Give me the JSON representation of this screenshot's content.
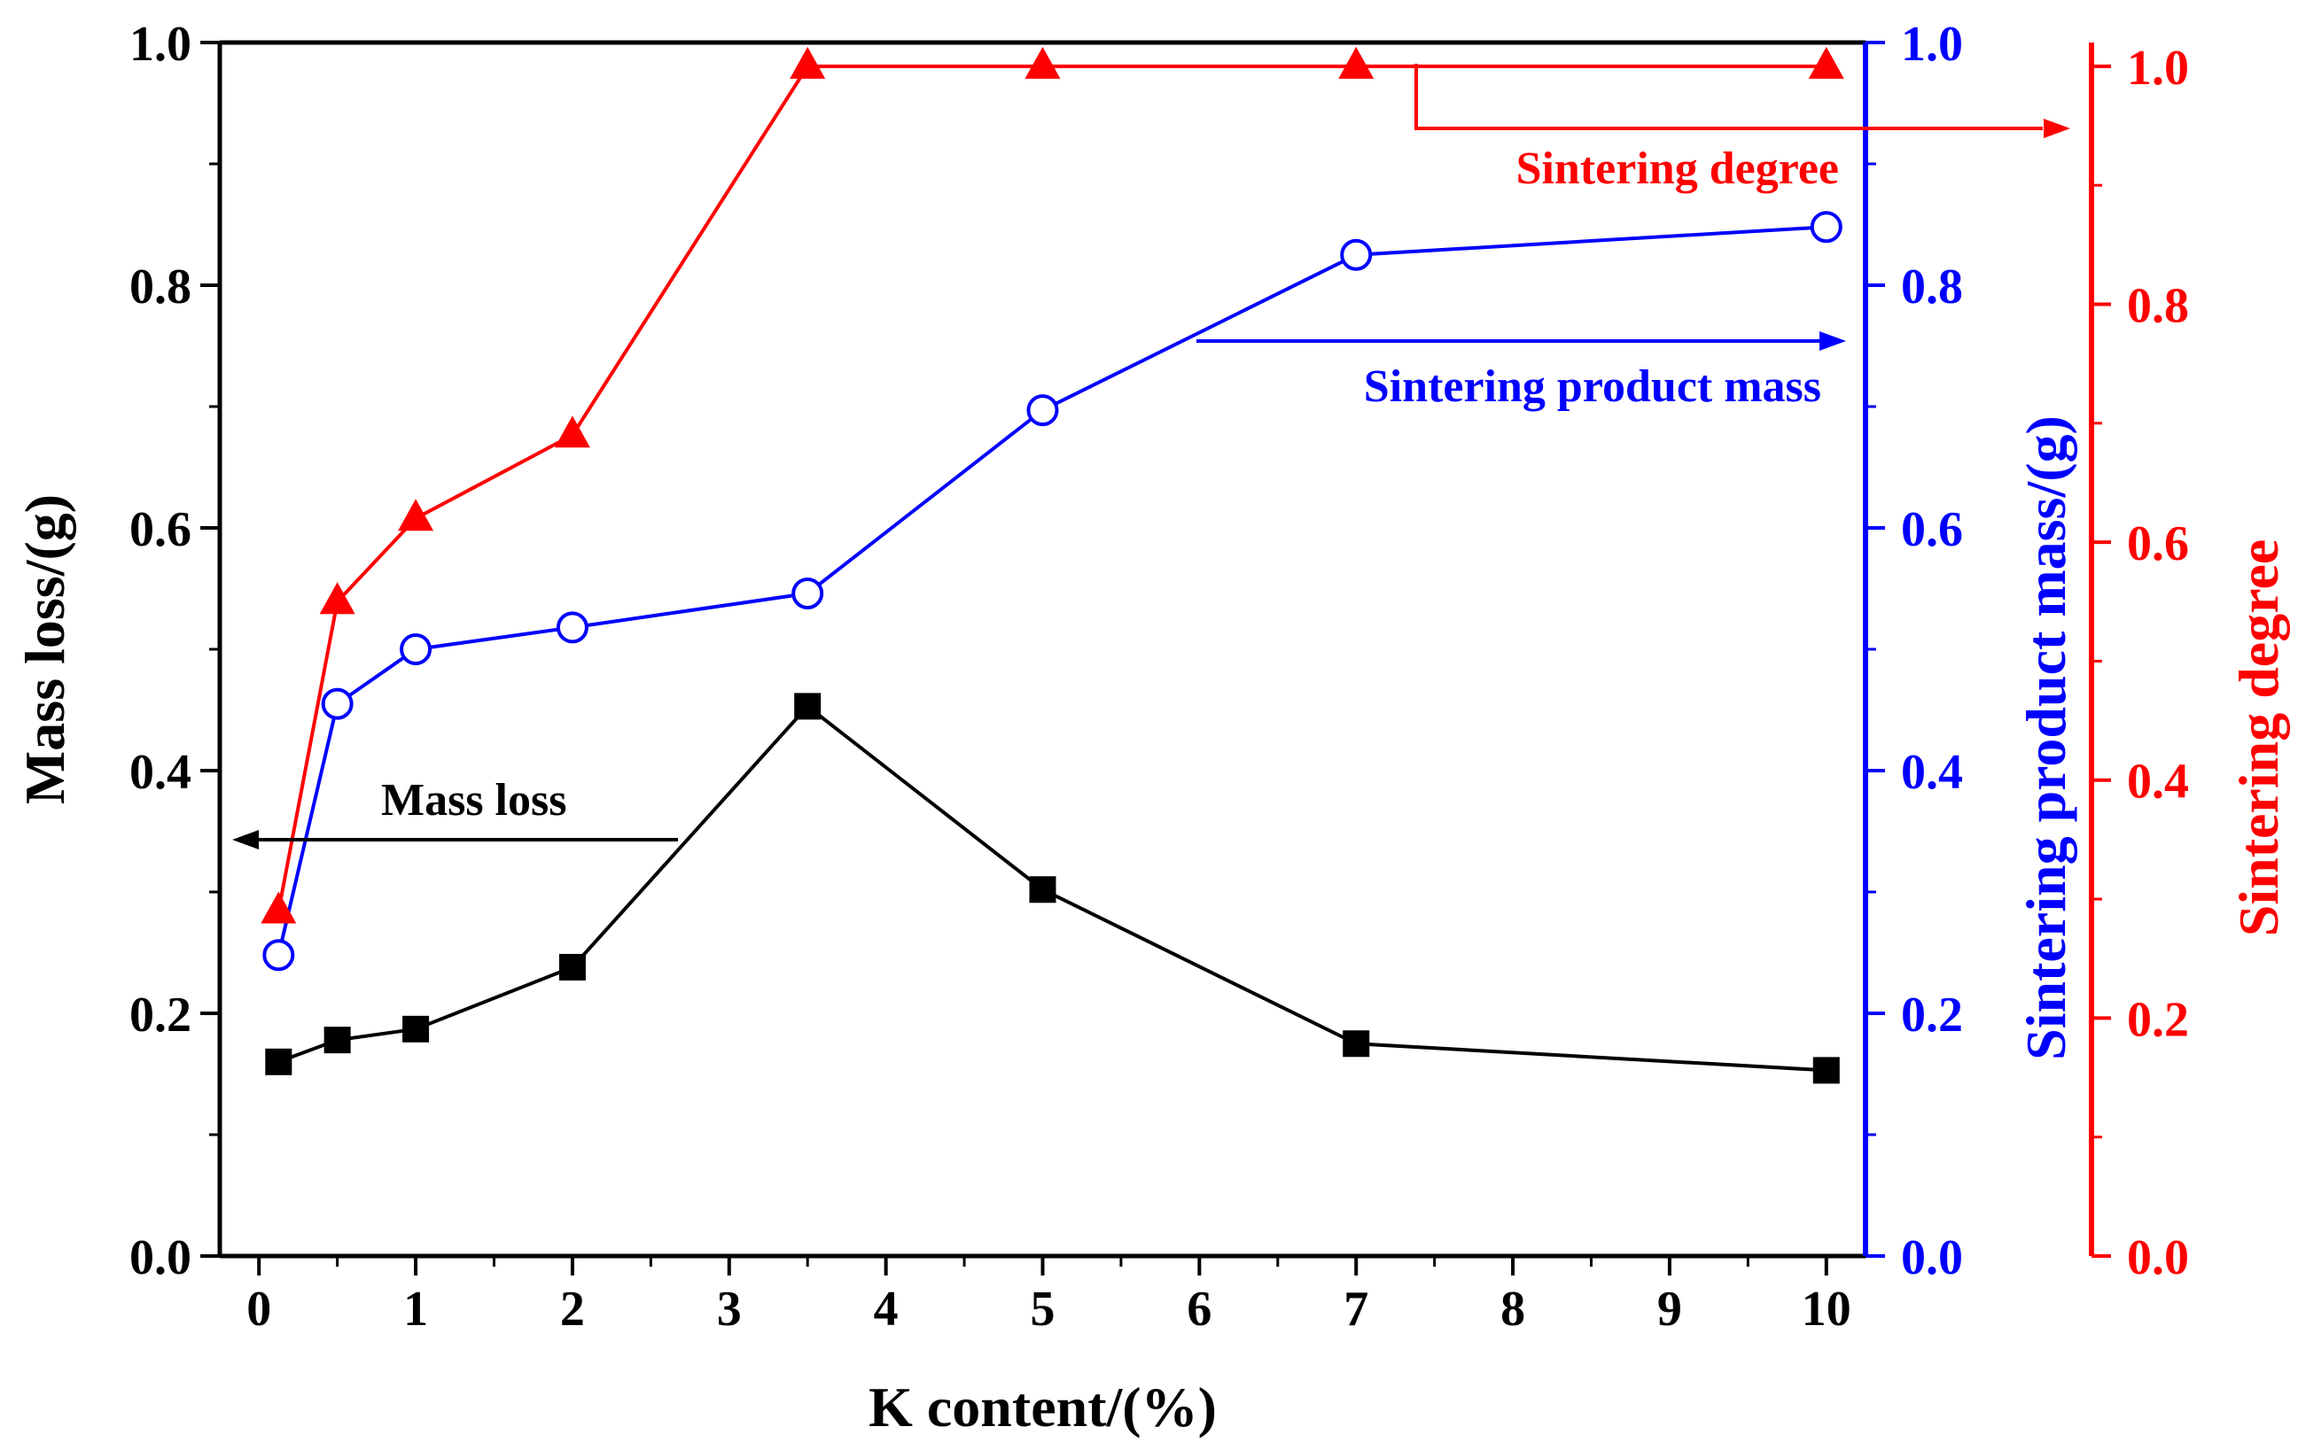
{
  "chart_data": {
    "type": "line",
    "title": "",
    "xlabel": "K content/(%)",
    "x_ticks": [
      "0",
      "1",
      "2",
      "3",
      "4",
      "5",
      "6",
      "7",
      "8",
      "9",
      "10"
    ],
    "categories": [
      "0.125",
      "0.5",
      "1",
      "2",
      "3.5",
      "5",
      "7",
      "10"
    ],
    "x_positions": [
      0.125,
      0.5,
      1,
      2,
      3.5,
      5,
      7,
      10
    ],
    "xlim": [
      -0.25,
      10.25
    ],
    "axes": [
      {
        "id": "left",
        "label": "Mass loss/(g)",
        "color": "#000000",
        "ylim": [
          0,
          1
        ],
        "ticks": [
          "0.0",
          "0.2",
          "0.4",
          "0.6",
          "0.8",
          "1.0"
        ]
      },
      {
        "id": "right1",
        "label": "Sintering product mass/(g)",
        "color": "#0000ff",
        "ylim": [
          0,
          1
        ],
        "ticks": [
          "0.0",
          "0.2",
          "0.4",
          "0.6",
          "0.8",
          "1.0"
        ]
      },
      {
        "id": "right2",
        "label": "Sintering degree",
        "color": "#ff0000",
        "ylim": [
          0,
          1.02
        ],
        "ticks": [
          "0.0",
          "0.2",
          "0.4",
          "0.6",
          "0.8",
          "1.0"
        ]
      }
    ],
    "series": [
      {
        "name": "Mass loss",
        "axis": "left",
        "color": "#000000",
        "marker": "square-filled",
        "values": [
          0.16,
          0.178,
          0.187,
          0.238,
          0.453,
          0.302,
          0.175,
          0.153
        ]
      },
      {
        "name": "Sintering product mass",
        "axis": "right1",
        "color": "#0000ff",
        "marker": "circle-open",
        "values": [
          0.248,
          0.455,
          0.5,
          0.518,
          0.546,
          0.697,
          0.825,
          0.848
        ]
      },
      {
        "name": "Sintering degree",
        "axis": "right2",
        "color": "#ff0000",
        "marker": "triangle-filled",
        "values": [
          0.29,
          0.55,
          0.62,
          0.69,
          1.0,
          1.0,
          1.0,
          1.0
        ]
      }
    ],
    "annotations": [
      {
        "text": "Mass loss",
        "color": "#000000",
        "points_to": "left axis"
      },
      {
        "text": "Sintering product mass",
        "color": "#0000ff",
        "points_to": "right1 axis"
      },
      {
        "text": "Sintering degree",
        "color": "#ff0000",
        "points_to": "right2 axis"
      }
    ],
    "grid": false
  }
}
